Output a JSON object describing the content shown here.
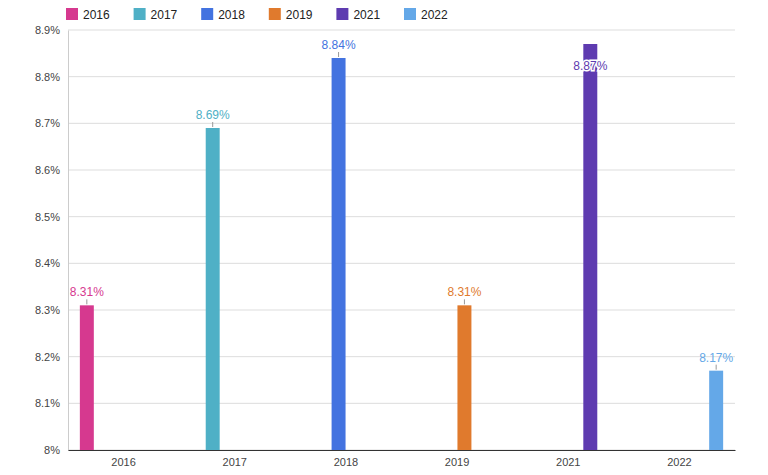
{
  "chart_data": {
    "type": "bar",
    "categories": [
      "2016",
      "2017",
      "2018",
      "2019",
      "2021",
      "2022"
    ],
    "series": [
      {
        "name": "2016",
        "color": "#d6398f",
        "values": [
          8.31,
          null,
          null,
          null,
          null,
          null
        ],
        "value_labels": [
          "8.31%",
          null,
          null,
          null,
          null,
          null
        ]
      },
      {
        "name": "2017",
        "color": "#4fb0c6",
        "values": [
          null,
          8.69,
          null,
          null,
          null,
          null
        ],
        "value_labels": [
          null,
          "8.69%",
          null,
          null,
          null,
          null
        ]
      },
      {
        "name": "2018",
        "color": "#4373e0",
        "values": [
          null,
          null,
          8.84,
          null,
          null,
          null
        ],
        "value_labels": [
          null,
          null,
          "8.84%",
          null,
          null,
          null
        ]
      },
      {
        "name": "2019",
        "color": "#e07a2d",
        "values": [
          null,
          null,
          null,
          8.31,
          null,
          null
        ],
        "value_labels": [
          null,
          null,
          null,
          "8.31%",
          null,
          null
        ]
      },
      {
        "name": "2021",
        "color": "#5e3bb0",
        "values": [
          null,
          null,
          null,
          null,
          8.87,
          null
        ],
        "value_labels": [
          null,
          null,
          null,
          null,
          "8.87%",
          null
        ]
      },
      {
        "name": "2022",
        "color": "#64a8e8",
        "values": [
          null,
          null,
          null,
          null,
          null,
          8.17
        ],
        "value_labels": [
          null,
          null,
          null,
          null,
          null,
          "8.17%"
        ]
      }
    ],
    "ylim": [
      8,
      8.9
    ],
    "yticks": [
      {
        "value": 8,
        "label": "8%"
      },
      {
        "value": 8.1,
        "label": "8.1%"
      },
      {
        "value": 8.2,
        "label": "8.2%"
      },
      {
        "value": 8.3,
        "label": "8.3%"
      },
      {
        "value": 8.4,
        "label": "8.4%"
      },
      {
        "value": 8.5,
        "label": "8.5%"
      },
      {
        "value": 8.6,
        "label": "8.6%"
      },
      {
        "value": 8.7,
        "label": "8.7%"
      },
      {
        "value": 8.8,
        "label": "8.8%"
      },
      {
        "value": 8.9,
        "label": "8.9%"
      }
    ],
    "grid": true,
    "legend": "top",
    "data_labels": true
  }
}
